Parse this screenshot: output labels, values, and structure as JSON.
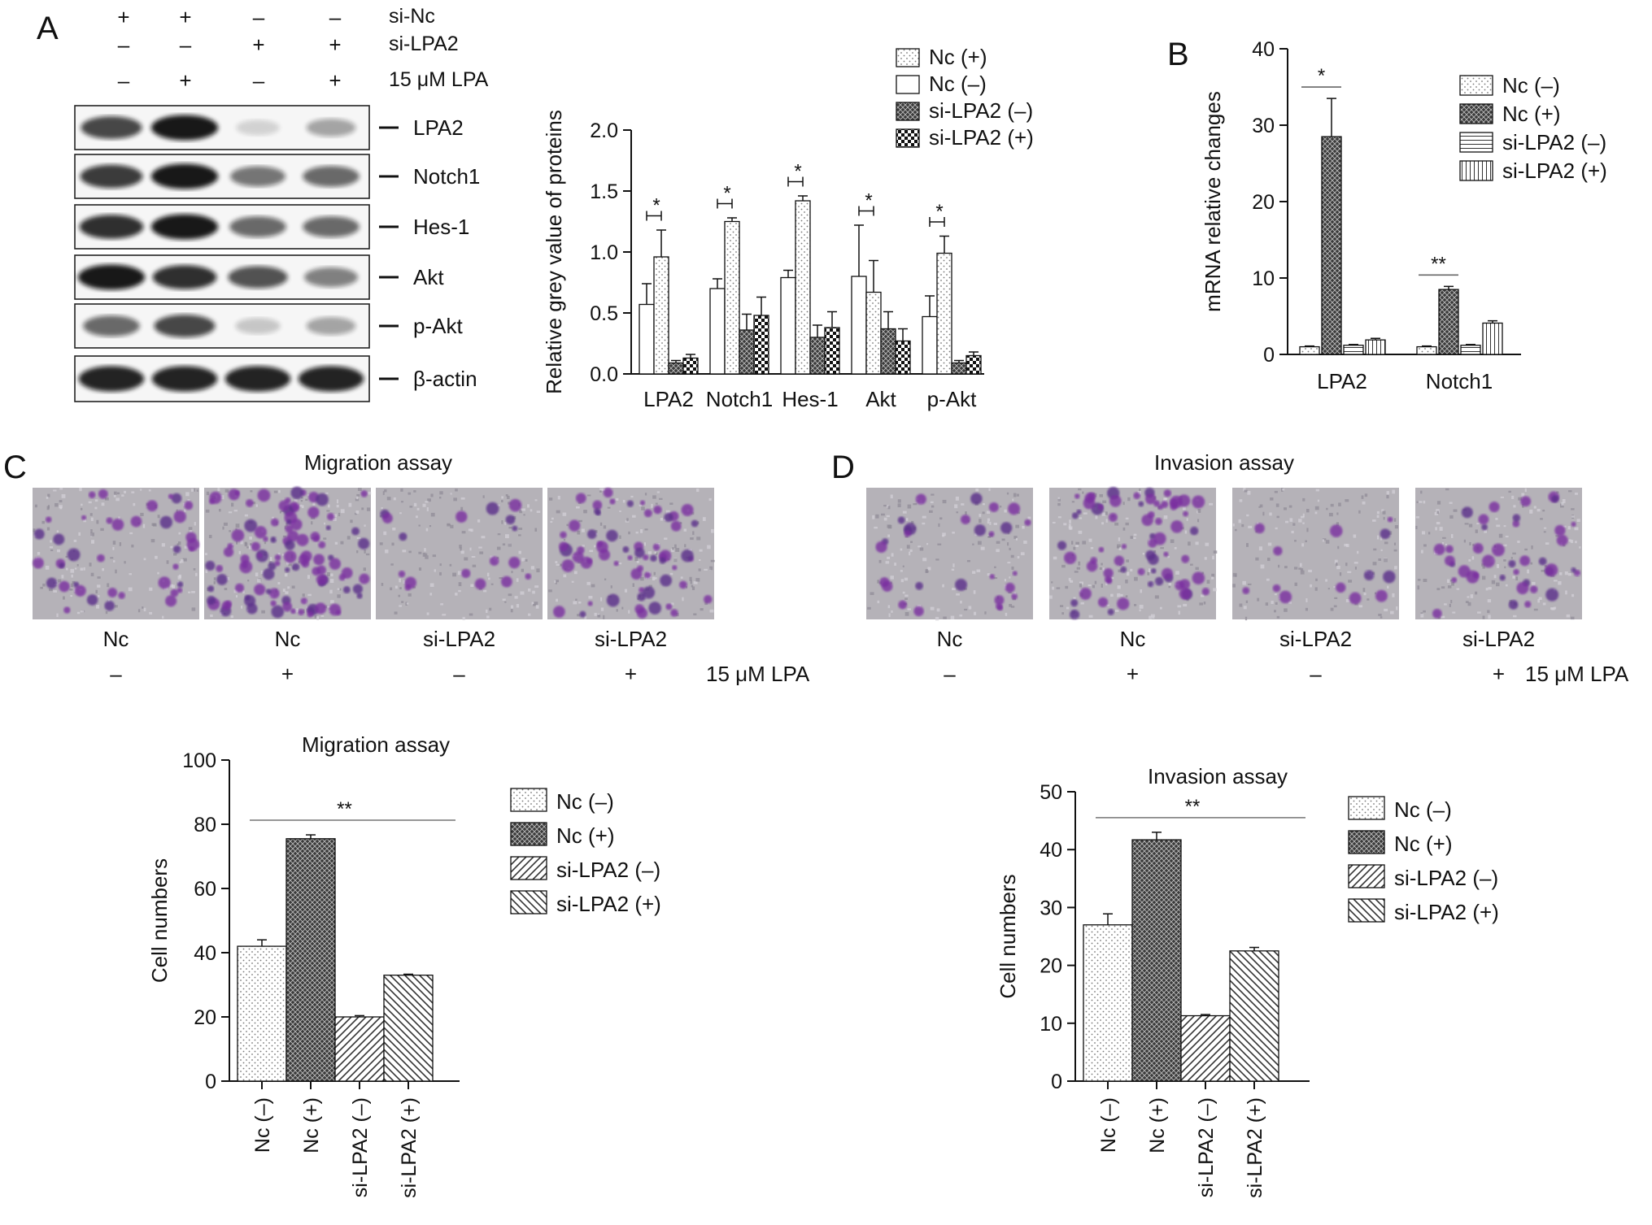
{
  "panel_labels": {
    "A": "A",
    "B": "B",
    "C": "C",
    "D": "D"
  },
  "blot": {
    "conditions": [
      {
        "label": "si-Nc",
        "signs": [
          "+",
          "+",
          "–",
          "–"
        ]
      },
      {
        "label": "si-LPA2",
        "signs": [
          "–",
          "–",
          "+",
          "+"
        ]
      },
      {
        "label": "15 μM LPA",
        "signs": [
          "–",
          "+",
          "–",
          "+"
        ]
      }
    ],
    "proteins": [
      {
        "label": "LPA2",
        "intensities": [
          0.75,
          0.95,
          0.15,
          0.35
        ]
      },
      {
        "label": "Notch1",
        "intensities": [
          0.8,
          0.95,
          0.55,
          0.6
        ]
      },
      {
        "label": "Hes-1",
        "intensities": [
          0.85,
          0.95,
          0.6,
          0.6
        ]
      },
      {
        "label": "Akt",
        "intensities": [
          0.95,
          0.85,
          0.7,
          0.5
        ]
      },
      {
        "label": "p-Akt",
        "intensities": [
          0.6,
          0.75,
          0.2,
          0.35
        ]
      },
      {
        "label": "β-actin",
        "intensities": [
          0.9,
          0.9,
          0.9,
          0.9
        ]
      }
    ]
  },
  "micrographs": {
    "migration": {
      "title": "Migration assay",
      "labels": [
        "Nc",
        "Nc",
        "si-LPA2",
        "si-LPA2"
      ],
      "signs": [
        "–",
        "+",
        "–",
        "+"
      ],
      "lpa_label": "15 μM LPA",
      "densities": [
        0.35,
        0.9,
        0.15,
        0.55
      ]
    },
    "invasion": {
      "title": "Invasion assay",
      "labels": [
        "Nc",
        "Nc",
        "si-LPA2",
        "si-LPA2"
      ],
      "signs": [
        "–",
        "+",
        "–",
        "+"
      ],
      "lpa_label": "15 μM LPA",
      "densities": [
        0.25,
        0.6,
        0.12,
        0.35
      ]
    }
  },
  "chart_data": [
    {
      "id": "A-grey",
      "type": "bar",
      "title": "",
      "xlabel": "",
      "ylabel": "Relative grey value of proteins",
      "categories": [
        "LPA2",
        "Notch1",
        "Hes-1",
        "Akt",
        "p-Akt"
      ],
      "ylim": [
        0,
        2.0
      ],
      "yticks": [
        "0.0",
        "0.5",
        "1.0",
        "1.5",
        "2.0"
      ],
      "series": [
        {
          "name": "Nc (–)",
          "pattern": "white",
          "values": [
            0.57,
            0.7,
            0.79,
            0.8,
            0.47
          ],
          "errors": [
            0.17,
            0.08,
            0.06,
            0.42,
            0.17
          ]
        },
        {
          "name": "Nc (+)",
          "pattern": "dots",
          "values": [
            0.96,
            1.25,
            1.42,
            0.67,
            0.99
          ],
          "errors": [
            0.22,
            0.03,
            0.04,
            0.26,
            0.14
          ]
        },
        {
          "name": "si-LPA2 (–)",
          "pattern": "darkcross",
          "values": [
            0.09,
            0.36,
            0.3,
            0.37,
            0.09
          ],
          "errors": [
            0.02,
            0.13,
            0.1,
            0.14,
            0.02
          ]
        },
        {
          "name": "si-LPA2 (+)",
          "pattern": "checker",
          "values": [
            0.13,
            0.48,
            0.38,
            0.27,
            0.15
          ],
          "errors": [
            0.03,
            0.15,
            0.13,
            0.1,
            0.03
          ]
        }
      ],
      "legend": [
        "Nc (+)",
        "Nc (–)",
        "si-LPA2 (–)",
        "si-LPA2 (+)"
      ],
      "significance": [
        {
          "category": "LPA2",
          "text": "*"
        },
        {
          "category": "Notch1",
          "text": "*"
        },
        {
          "category": "Hes-1",
          "text": "*"
        },
        {
          "category": "Akt",
          "text": "*"
        },
        {
          "category": "p-Akt",
          "text": "*"
        }
      ]
    },
    {
      "id": "B-mrna",
      "type": "bar",
      "title": "",
      "xlabel": "",
      "ylabel": "mRNA relative changes",
      "categories": [
        "LPA2",
        "Notch1"
      ],
      "ylim": [
        0,
        40
      ],
      "yticks": [
        "0",
        "10",
        "20",
        "30",
        "40"
      ],
      "series": [
        {
          "name": "Nc (–)",
          "pattern": "dots",
          "values": [
            1.0,
            1.0
          ],
          "errors": [
            0.1,
            0.1
          ]
        },
        {
          "name": "Nc (+)",
          "pattern": "darkcross",
          "values": [
            28.5,
            8.5
          ],
          "errors": [
            5.0,
            0.4
          ]
        },
        {
          "name": "si-LPA2 (–)",
          "pattern": "hlines",
          "values": [
            1.2,
            1.2
          ],
          "errors": [
            0.1,
            0.1
          ]
        },
        {
          "name": "si-LPA2 (+)",
          "pattern": "vlines",
          "values": [
            1.9,
            4.1
          ],
          "errors": [
            0.2,
            0.3
          ]
        }
      ],
      "legend": [
        "Nc (–)",
        "Nc (+)",
        "si-LPA2 (–)",
        "si-LPA2 (+)"
      ],
      "significance": [
        {
          "category": "LPA2",
          "text": "*"
        },
        {
          "category": "Notch1",
          "text": "**"
        }
      ]
    },
    {
      "id": "C-migration",
      "type": "bar",
      "title": "Migration assay",
      "xlabel": "",
      "ylabel": "Cell numbers",
      "categories": [
        "Nc (–)",
        "Nc (+)",
        "si-LPA2 (–)",
        "si-LPA2 (+)"
      ],
      "ylim": [
        0,
        100
      ],
      "yticks": [
        "0",
        "20",
        "40",
        "60",
        "80",
        "100"
      ],
      "values": [
        42,
        75.5,
        20,
        33
      ],
      "errors": [
        2.0,
        1.2,
        0.4,
        0.3
      ],
      "patterns": [
        "dots",
        "darkcross",
        "diag",
        "diagrev"
      ],
      "legend": [
        "Nc (–)",
        "Nc (+)",
        "si-LPA2 (–)",
        "si-LPA2 (+)"
      ],
      "significance": "**"
    },
    {
      "id": "D-invasion",
      "type": "bar",
      "title": "Invasion assay",
      "xlabel": "",
      "ylabel": "Cell numbers",
      "categories": [
        "Nc (–)",
        "Nc (+)",
        "si-LPA2 (–)",
        "si-LPA2 (+)"
      ],
      "ylim": [
        0,
        50
      ],
      "yticks": [
        "0",
        "10",
        "20",
        "30",
        "40",
        "50"
      ],
      "values": [
        27,
        41.7,
        11.3,
        22.5
      ],
      "errors": [
        1.9,
        1.3,
        0.2,
        0.6
      ],
      "patterns": [
        "dots",
        "darkcross",
        "diag",
        "diagrev"
      ],
      "legend": [
        "Nc (–)",
        "Nc (+)",
        "si-LPA2 (–)",
        "si-LPA2 (+)"
      ],
      "significance": "**"
    }
  ]
}
